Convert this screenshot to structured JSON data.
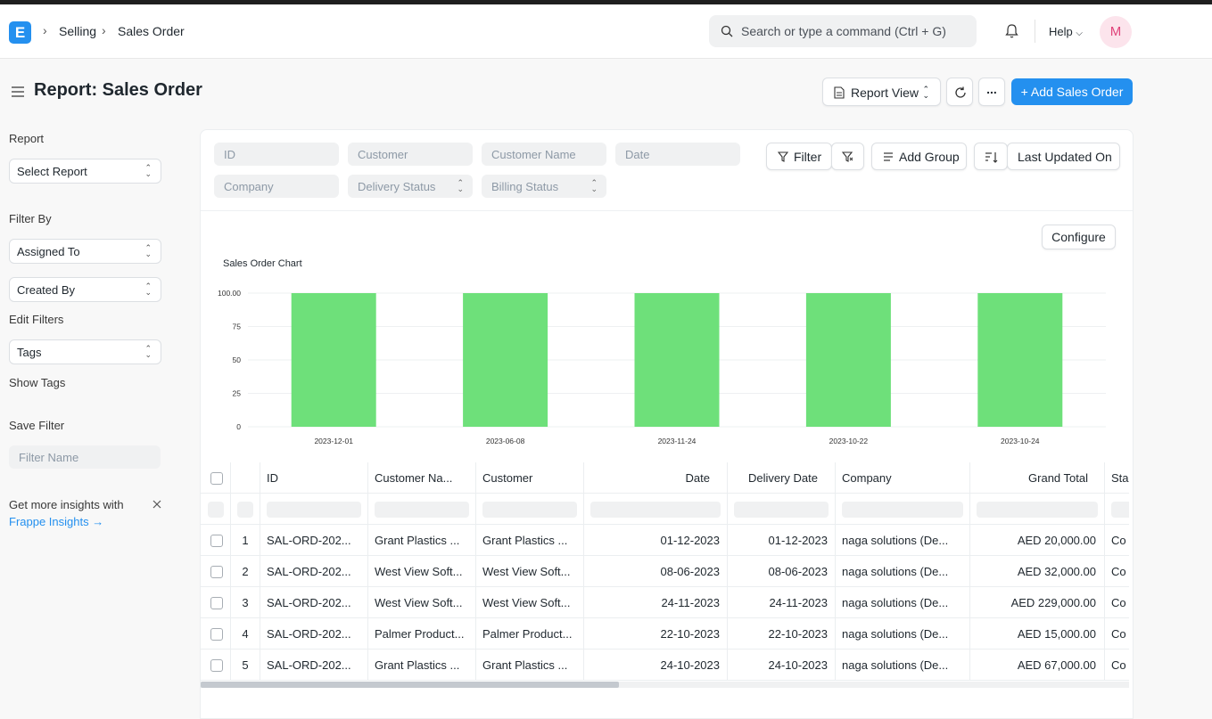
{
  "app": {
    "logo_letter": "E",
    "accent": "#2490ef"
  },
  "breadcrumbs": [
    "Selling",
    "Sales Order"
  ],
  "search": {
    "placeholder": "Search or type a command (Ctrl + G)"
  },
  "header": {
    "help_label": "Help",
    "avatar_initial": "M"
  },
  "page": {
    "title": "Report: Sales Order"
  },
  "toolbar": {
    "view_label": "Report View",
    "add_label": "+ Add Sales Order",
    "more_label": "..."
  },
  "sidebar": {
    "report_label": "Report",
    "select_report": "Select Report",
    "filter_by_label": "Filter By",
    "assigned_to": "Assigned To",
    "created_by": "Created By",
    "edit_filters": "Edit Filters",
    "tags": "Tags",
    "show_tags": "Show Tags",
    "save_filter_label": "Save Filter",
    "filter_name_placeholder": "Filter Name",
    "insights_text": "Get more insights with",
    "insights_link": "Frappe Insights →"
  },
  "filters": {
    "fields": [
      "ID",
      "Customer",
      "Customer Name",
      "Date",
      "Company",
      "Delivery Status",
      "Billing Status"
    ],
    "filter_btn": "Filter",
    "add_group": "Add Group",
    "sort_label": "Last Updated On",
    "configure": "Configure"
  },
  "chart_data": {
    "type": "bar",
    "title": "Sales Order Chart",
    "categories": [
      "2023-12-01",
      "2023-06-08",
      "2023-11-24",
      "2023-10-22",
      "2023-10-24"
    ],
    "values": [
      100,
      100,
      100,
      100,
      100
    ],
    "yticks": [
      "0",
      "25",
      "50",
      "75",
      "100.00"
    ],
    "ylim": [
      0,
      100
    ],
    "color": "#6ee07a"
  },
  "table": {
    "columns": [
      "ID",
      "Customer Na...",
      "Customer",
      "Date",
      "Delivery Date",
      "Company",
      "Grand Total",
      "Sta"
    ],
    "rows": [
      {
        "n": "1",
        "id": "SAL-ORD-202...",
        "cname": "Grant Plastics ...",
        "cust": "Grant Plastics ...",
        "date": "01-12-2023",
        "ddate": "01-12-2023",
        "company": "naga solutions (De...",
        "total": "AED 20,000.00",
        "status": "Co"
      },
      {
        "n": "2",
        "id": "SAL-ORD-202...",
        "cname": "West View Soft...",
        "cust": "West View Soft...",
        "date": "08-06-2023",
        "ddate": "08-06-2023",
        "company": "naga solutions (De...",
        "total": "AED 32,000.00",
        "status": "Co"
      },
      {
        "n": "3",
        "id": "SAL-ORD-202...",
        "cname": "West View Soft...",
        "cust": "West View Soft...",
        "date": "24-11-2023",
        "ddate": "24-11-2023",
        "company": "naga solutions (De...",
        "total": "AED 229,000.00",
        "status": "Co"
      },
      {
        "n": "4",
        "id": "SAL-ORD-202...",
        "cname": "Palmer Product...",
        "cust": "Palmer Product...",
        "date": "22-10-2023",
        "ddate": "22-10-2023",
        "company": "naga solutions (De...",
        "total": "AED 15,000.00",
        "status": "Co"
      },
      {
        "n": "5",
        "id": "SAL-ORD-202...",
        "cname": "Grant Plastics ...",
        "cust": "Grant Plastics ...",
        "date": "24-10-2023",
        "ddate": "24-10-2023",
        "company": "naga solutions (De...",
        "total": "AED 67,000.00",
        "status": "Co"
      }
    ]
  }
}
